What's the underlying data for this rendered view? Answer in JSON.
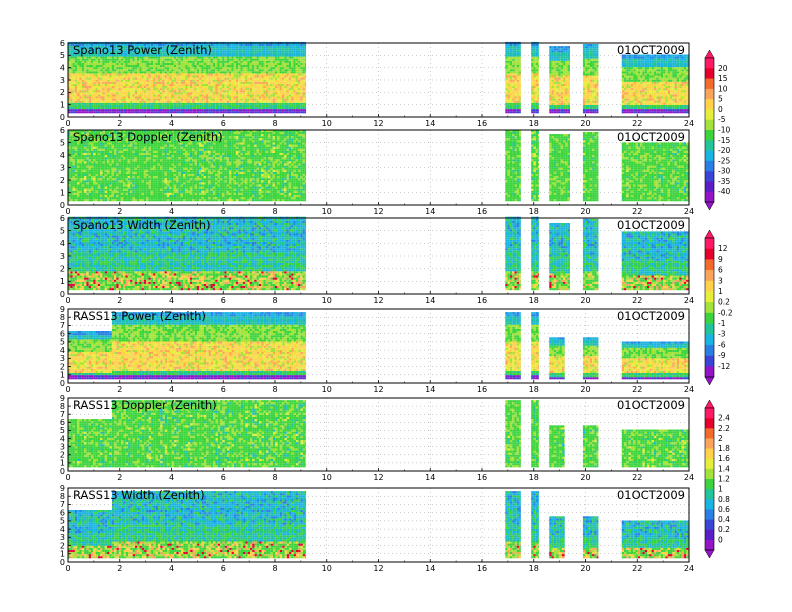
{
  "chart_data": {
    "type": "heatmap",
    "x_axis": {
      "range": [
        0,
        24
      ],
      "ticks": [
        0,
        2,
        4,
        6,
        8,
        10,
        12,
        14,
        16,
        18,
        20,
        22,
        24
      ],
      "grid": "dotted"
    },
    "panels": [
      {
        "title": "Spano13 Power (Zenith)",
        "date": "01OCT2009",
        "y_range": [
          0,
          6
        ],
        "y_ticks": [
          0,
          1,
          2,
          3,
          4,
          5,
          6
        ],
        "field": "power",
        "colorbar": "power",
        "data_blocks": [
          {
            "x": [
              0,
              9.2
            ],
            "y_top": 6
          },
          {
            "x": [
              16.9,
              17.5
            ],
            "y_top": 6
          },
          {
            "x": [
              17.9,
              18.2
            ],
            "y_top": 6
          },
          {
            "x": [
              18.6,
              19.4
            ],
            "y_top": 5.6
          },
          {
            "x": [
              19.9,
              20.5
            ],
            "y_top": 5.8
          },
          {
            "x": [
              21.4,
              24
            ],
            "y_top": 4.9
          }
        ]
      },
      {
        "title": "Spano13 Doppler (Zenith)",
        "date": "01OCT2009",
        "y_range": [
          0,
          6
        ],
        "y_ticks": [
          0,
          1,
          2,
          3,
          4,
          5,
          6
        ],
        "field": "doppler",
        "colorbar": "power",
        "data_blocks": [
          {
            "x": [
              0,
              9.2
            ],
            "y_top": 6
          },
          {
            "x": [
              16.9,
              17.5
            ],
            "y_top": 6
          },
          {
            "x": [
              17.9,
              18.2
            ],
            "y_top": 6
          },
          {
            "x": [
              18.6,
              19.4
            ],
            "y_top": 5.6
          },
          {
            "x": [
              19.9,
              20.5
            ],
            "y_top": 5.8
          },
          {
            "x": [
              21.4,
              24
            ],
            "y_top": 4.9
          }
        ]
      },
      {
        "title": "Spano13 Width (Zenith)",
        "date": "01OCT2009",
        "y_range": [
          0,
          6
        ],
        "y_ticks": [
          0,
          1,
          2,
          3,
          4,
          5,
          6
        ],
        "field": "width",
        "colorbar": "width",
        "data_blocks": [
          {
            "x": [
              0,
              9.2
            ],
            "y_top": 6
          },
          {
            "x": [
              16.9,
              17.5
            ],
            "y_top": 6
          },
          {
            "x": [
              17.9,
              18.2
            ],
            "y_top": 6
          },
          {
            "x": [
              18.6,
              19.4
            ],
            "y_top": 5.6
          },
          {
            "x": [
              19.9,
              20.5
            ],
            "y_top": 5.8
          },
          {
            "x": [
              21.4,
              24
            ],
            "y_top": 4.9
          }
        ]
      },
      {
        "title": "RASS13 Power (Zenith)",
        "date": "01OCT2009",
        "y_range": [
          0,
          9
        ],
        "y_ticks": [
          0,
          1,
          2,
          3,
          4,
          5,
          6,
          7,
          8,
          9
        ],
        "field": "power",
        "colorbar": "width",
        "data_blocks": [
          {
            "x": [
              0,
              1.7
            ],
            "y_top": 6.2
          },
          {
            "x": [
              1.7,
              9.2
            ],
            "y_top": 8.5
          },
          {
            "x": [
              16.9,
              17.5
            ],
            "y_top": 8.5
          },
          {
            "x": [
              17.9,
              18.2
            ],
            "y_top": 8.5
          },
          {
            "x": [
              18.6,
              19.0
            ],
            "y_top": 5.5
          },
          {
            "x": [
              19.0,
              19.2
            ],
            "y_top": 5.5
          },
          {
            "x": [
              19.9,
              20.5
            ],
            "y_top": 5.5
          },
          {
            "x": [
              21.4,
              24
            ],
            "y_top": 5.0
          }
        ]
      },
      {
        "title": "RASS13 Doppler (Zenith)",
        "date": "01OCT2009",
        "y_range": [
          0,
          9
        ],
        "y_ticks": [
          0,
          1,
          2,
          3,
          4,
          5,
          6,
          7,
          8,
          9
        ],
        "field": "doppler",
        "colorbar": "rass",
        "data_blocks": [
          {
            "x": [
              0,
              1.7
            ],
            "y_top": 6.2
          },
          {
            "x": [
              1.7,
              9.2
            ],
            "y_top": 8.5
          },
          {
            "x": [
              16.9,
              17.5
            ],
            "y_top": 8.5
          },
          {
            "x": [
              17.9,
              18.2
            ],
            "y_top": 8.5
          },
          {
            "x": [
              18.6,
              19.0
            ],
            "y_top": 5.5
          },
          {
            "x": [
              19.0,
              19.2
            ],
            "y_top": 5.5
          },
          {
            "x": [
              19.9,
              20.5
            ],
            "y_top": 5.5
          },
          {
            "x": [
              21.4,
              24
            ],
            "y_top": 5.0
          }
        ]
      },
      {
        "title": "RASS13 Width (Zenith)",
        "date": "01OCT2009",
        "y_range": [
          0,
          9
        ],
        "y_ticks": [
          0,
          1,
          2,
          3,
          4,
          5,
          6,
          7,
          8,
          9
        ],
        "field": "width",
        "colorbar": "rass",
        "data_blocks": [
          {
            "x": [
              0,
              1.7
            ],
            "y_top": 6.2
          },
          {
            "x": [
              1.7,
              9.2
            ],
            "y_top": 8.5
          },
          {
            "x": [
              16.9,
              17.5
            ],
            "y_top": 8.5
          },
          {
            "x": [
              17.9,
              18.2
            ],
            "y_top": 8.5
          },
          {
            "x": [
              18.6,
              19.0
            ],
            "y_top": 5.5
          },
          {
            "x": [
              19.0,
              19.2
            ],
            "y_top": 5.5
          },
          {
            "x": [
              19.9,
              20.5
            ],
            "y_top": 5.5
          },
          {
            "x": [
              21.4,
              24
            ],
            "y_top": 5.0
          }
        ]
      }
    ],
    "colorbars": [
      {
        "id": "power",
        "position": "right",
        "labels": [
          "20",
          "15",
          "10",
          "5",
          "0",
          "-5",
          "-10",
          "-15",
          "-20",
          "-25",
          "-30",
          "-35",
          "-40"
        ],
        "colors": [
          "#ff1a66",
          "#e6002e",
          "#f36a2a",
          "#fca35a",
          "#ffd24a",
          "#e7ee3a",
          "#a2e23a",
          "#3cd43c",
          "#22c49a",
          "#1ab4e2",
          "#2a7fe6",
          "#3a44d6",
          "#5a1ec8",
          "#9414c8"
        ]
      },
      {
        "id": "width",
        "position": "right",
        "labels": [
          "12",
          "9",
          "6",
          "3",
          "1",
          "0.2",
          "-0.2",
          "-1",
          "-3",
          "-6",
          "-9",
          "-12"
        ],
        "colors": [
          "#ff1a66",
          "#e6002e",
          "#f36a2a",
          "#fca35a",
          "#ffd24a",
          "#e7ee3a",
          "#a2e23a",
          "#3cd43c",
          "#22c49a",
          "#1ab4e2",
          "#2a7fe6",
          "#3a44d6",
          "#9414c8"
        ]
      },
      {
        "id": "rass",
        "position": "right",
        "labels": [
          "2.4",
          "2.2",
          "2",
          "1.8",
          "1.6",
          "1.4",
          "1.2",
          "1",
          "0.8",
          "0.6",
          "0.4",
          "0.2",
          "0"
        ],
        "colors": [
          "#ff1a66",
          "#e6002e",
          "#f36a2a",
          "#fca35a",
          "#ffd24a",
          "#e7ee3a",
          "#a2e23a",
          "#3cd43c",
          "#22c49a",
          "#1ab4e2",
          "#2a7fe6",
          "#3a44d6",
          "#5a1ec8",
          "#9414c8"
        ]
      }
    ]
  }
}
